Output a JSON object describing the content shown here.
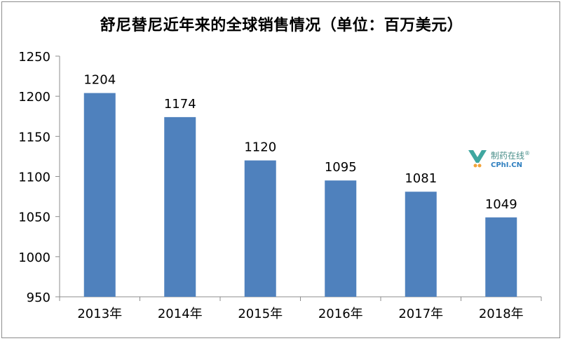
{
  "chart_data": {
    "type": "bar",
    "title": "舒尼替尼近年来的全球销售情况（单位：百万美元）",
    "categories": [
      "2013年",
      "2014年",
      "2015年",
      "2016年",
      "2017年",
      "2018年"
    ],
    "values": [
      1204,
      1174,
      1120,
      1095,
      1081,
      1049
    ],
    "data_labels": [
      "1204",
      "1174",
      "1120",
      "1095",
      "1081",
      "1049"
    ],
    "ylim": [
      950,
      1250
    ],
    "yticks": [
      950,
      1000,
      1050,
      1100,
      1150,
      1200,
      1250
    ],
    "grid": false,
    "legend": "none",
    "bar_color": "#4f81bd"
  },
  "watermark": {
    "cn": "制药在线",
    "en": "CPhI.CN",
    "registered": "®"
  }
}
